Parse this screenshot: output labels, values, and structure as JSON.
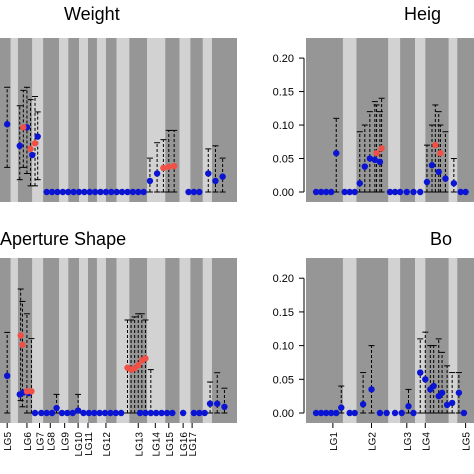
{
  "chart_data": [
    {
      "id": "weight",
      "type": "scatter",
      "title": "Weight",
      "categories": [
        "LG5",
        "LG6",
        "LG7",
        "LG8",
        "LG9",
        "LG10",
        "LG11",
        "LG12",
        "LG13",
        "LG14",
        "LG15",
        "LG16",
        "LG17"
      ],
      "show_x_labels": false,
      "show_y_ticks": false,
      "ylim": [
        0,
        0.25
      ],
      "points_blue": [
        {
          "x": 0.2,
          "y": 0.11
        },
        {
          "x": 0.9,
          "y": 0.075
        },
        {
          "x": 1.3,
          "y": 0.105
        },
        {
          "x": 1.6,
          "y": 0.06
        },
        {
          "x": 1.9,
          "y": 0.09
        },
        {
          "x": 2.4,
          "y": 0.0
        },
        {
          "x": 2.7,
          "y": 0.0
        },
        {
          "x": 3.0,
          "y": 0.0
        },
        {
          "x": 3.3,
          "y": 0.0
        },
        {
          "x": 3.6,
          "y": 0.0
        },
        {
          "x": 3.9,
          "y": 0.0
        },
        {
          "x": 4.2,
          "y": 0.0
        },
        {
          "x": 4.5,
          "y": 0.0
        },
        {
          "x": 4.8,
          "y": 0.0
        },
        {
          "x": 5.1,
          "y": 0.0
        },
        {
          "x": 5.4,
          "y": 0.0
        },
        {
          "x": 5.7,
          "y": 0.0
        },
        {
          "x": 6.0,
          "y": 0.0
        },
        {
          "x": 6.3,
          "y": 0.0
        },
        {
          "x": 6.6,
          "y": 0.0
        },
        {
          "x": 6.9,
          "y": 0.0
        },
        {
          "x": 7.2,
          "y": 0.0
        },
        {
          "x": 7.5,
          "y": 0.0
        },
        {
          "x": 7.8,
          "y": 0.0
        },
        {
          "x": 8.15,
          "y": 0.018
        },
        {
          "x": 8.55,
          "y": 0.03
        },
        {
          "x": 10.3,
          "y": 0.0
        },
        {
          "x": 10.6,
          "y": 0.0
        },
        {
          "x": 10.9,
          "y": 0.0
        },
        {
          "x": 11.4,
          "y": 0.03
        },
        {
          "x": 11.8,
          "y": 0.018
        },
        {
          "x": 12.2,
          "y": 0.025
        }
      ],
      "points_red": [
        {
          "x": 1.1,
          "y": 0.105
        },
        {
          "x": 1.5,
          "y": 0.07
        },
        {
          "x": 1.75,
          "y": 0.079
        },
        {
          "x": 8.9,
          "y": 0.039
        },
        {
          "x": 9.2,
          "y": 0.041
        },
        {
          "x": 9.5,
          "y": 0.042
        }
      ],
      "intervals": [
        {
          "x": 0.2,
          "lo": 0.04,
          "hi": 0.17
        },
        {
          "x": 0.9,
          "lo": 0.02,
          "hi": 0.14
        },
        {
          "x": 1.1,
          "lo": 0.04,
          "hi": 0.165
        },
        {
          "x": 1.3,
          "lo": 0.03,
          "hi": 0.17
        },
        {
          "x": 1.5,
          "lo": 0.01,
          "hi": 0.15
        },
        {
          "x": 1.75,
          "lo": 0.01,
          "hi": 0.155
        },
        {
          "x": 1.9,
          "lo": 0.02,
          "hi": 0.13
        },
        {
          "x": 8.15,
          "lo": 0.0,
          "hi": 0.055
        },
        {
          "x": 8.55,
          "lo": 0.0,
          "hi": 0.08
        },
        {
          "x": 8.9,
          "lo": 0.0,
          "hi": 0.085
        },
        {
          "x": 9.2,
          "lo": 0.0,
          "hi": 0.1
        },
        {
          "x": 9.5,
          "lo": 0.0,
          "hi": 0.1
        },
        {
          "x": 11.4,
          "lo": 0.0,
          "hi": 0.07
        },
        {
          "x": 11.8,
          "lo": 0.0,
          "hi": 0.075
        },
        {
          "x": 12.2,
          "lo": 0.0,
          "hi": 0.055
        }
      ]
    },
    {
      "id": "height",
      "type": "scatter",
      "title": "Heig",
      "categories": [
        "LG1",
        "LG2",
        "LG3",
        "LG4",
        "LG5"
      ],
      "show_x_labels": false,
      "show_y_ticks": true,
      "ylim": [
        0,
        0.23
      ],
      "yticks": [
        "0.00",
        "0.05",
        "0.10",
        "0.15",
        "0.20"
      ],
      "ytick_values": [
        0,
        0.05,
        0.1,
        0.15,
        0.2
      ],
      "points_blue": [
        {
          "x": 0.1,
          "y": 0.0
        },
        {
          "x": 0.25,
          "y": 0.0
        },
        {
          "x": 0.4,
          "y": 0.0
        },
        {
          "x": 0.55,
          "y": 0.0
        },
        {
          "x": 0.7,
          "y": 0.058
        },
        {
          "x": 0.95,
          "y": 0.0
        },
        {
          "x": 1.1,
          "y": 0.0
        },
        {
          "x": 1.25,
          "y": 0.0
        },
        {
          "x": 1.4,
          "y": 0.013
        },
        {
          "x": 1.55,
          "y": 0.038
        },
        {
          "x": 1.7,
          "y": 0.05
        },
        {
          "x": 1.85,
          "y": 0.048
        },
        {
          "x": 2.0,
          "y": 0.045
        },
        {
          "x": 2.3,
          "y": 0.0
        },
        {
          "x": 2.45,
          "y": 0.0
        },
        {
          "x": 2.6,
          "y": 0.0
        },
        {
          "x": 2.8,
          "y": 0.0
        },
        {
          "x": 3.0,
          "y": 0.0
        },
        {
          "x": 3.2,
          "y": 0.0
        },
        {
          "x": 3.4,
          "y": 0.015
        },
        {
          "x": 3.55,
          "y": 0.04
        },
        {
          "x": 3.75,
          "y": 0.03
        },
        {
          "x": 3.95,
          "y": 0.02
        },
        {
          "x": 4.2,
          "y": 0.013
        },
        {
          "x": 4.4,
          "y": 0.0
        },
        {
          "x": 4.55,
          "y": 0.0
        }
      ],
      "points_red": [
        {
          "x": 1.9,
          "y": 0.058
        },
        {
          "x": 2.05,
          "y": 0.065
        },
        {
          "x": 3.65,
          "y": 0.07
        },
        {
          "x": 3.8,
          "y": 0.058
        }
      ],
      "intervals": [
        {
          "x": 0.7,
          "lo": 0.0,
          "hi": 0.11
        },
        {
          "x": 1.4,
          "lo": 0.0,
          "hi": 0.09
        },
        {
          "x": 1.55,
          "lo": 0.0,
          "hi": 0.1
        },
        {
          "x": 1.7,
          "lo": 0.0,
          "hi": 0.12
        },
        {
          "x": 1.85,
          "lo": 0.0,
          "hi": 0.135
        },
        {
          "x": 1.9,
          "lo": 0.0,
          "hi": 0.13
        },
        {
          "x": 2.0,
          "lo": 0.0,
          "hi": 0.12
        },
        {
          "x": 2.05,
          "lo": 0.0,
          "hi": 0.14
        },
        {
          "x": 3.4,
          "lo": 0.0,
          "hi": 0.07
        },
        {
          "x": 3.55,
          "lo": 0.0,
          "hi": 0.1
        },
        {
          "x": 3.65,
          "lo": 0.0,
          "hi": 0.13
        },
        {
          "x": 3.75,
          "lo": 0.0,
          "hi": 0.12
        },
        {
          "x": 3.8,
          "lo": 0.0,
          "hi": 0.1
        },
        {
          "x": 3.95,
          "lo": 0.0,
          "hi": 0.09
        },
        {
          "x": 4.2,
          "lo": 0.0,
          "hi": 0.05
        }
      ]
    },
    {
      "id": "aperture",
      "type": "scatter",
      "title": "Aperture Shape",
      "categories": [
        "LG5",
        "LG6",
        "LG7",
        "LG8",
        "LG9",
        "LG10",
        "LG11",
        "LG12",
        "LG13",
        "LG14",
        "LG15",
        "LG16",
        "LG17"
      ],
      "show_x_labels": true,
      "show_y_ticks": false,
      "ylim": [
        0,
        0.25
      ],
      "points_blue": [
        {
          "x": 0.2,
          "y": 0.06
        },
        {
          "x": 0.9,
          "y": 0.03
        },
        {
          "x": 1.1,
          "y": 0.033
        },
        {
          "x": 1.4,
          "y": 0.032
        },
        {
          "x": 1.75,
          "y": 0.0
        },
        {
          "x": 2.1,
          "y": 0.0
        },
        {
          "x": 2.4,
          "y": 0.0
        },
        {
          "x": 2.7,
          "y": 0.0
        },
        {
          "x": 2.95,
          "y": 0.008
        },
        {
          "x": 3.25,
          "y": 0.0
        },
        {
          "x": 3.55,
          "y": 0.0
        },
        {
          "x": 3.85,
          "y": 0.0
        },
        {
          "x": 4.15,
          "y": 0.004
        },
        {
          "x": 4.45,
          "y": 0.0
        },
        {
          "x": 4.75,
          "y": 0.0
        },
        {
          "x": 5.05,
          "y": 0.0
        },
        {
          "x": 5.35,
          "y": 0.0
        },
        {
          "x": 5.65,
          "y": 0.0
        },
        {
          "x": 5.95,
          "y": 0.0
        },
        {
          "x": 6.25,
          "y": 0.0
        },
        {
          "x": 6.55,
          "y": 0.0
        },
        {
          "x": 7.6,
          "y": 0.0
        },
        {
          "x": 7.9,
          "y": 0.0
        },
        {
          "x": 8.2,
          "y": 0.0
        },
        {
          "x": 8.5,
          "y": 0.0
        },
        {
          "x": 8.8,
          "y": 0.0
        },
        {
          "x": 9.1,
          "y": 0.0
        },
        {
          "x": 9.4,
          "y": 0.0
        },
        {
          "x": 10.0,
          "y": 0.0
        },
        {
          "x": 10.6,
          "y": 0.0
        },
        {
          "x": 10.9,
          "y": 0.0
        },
        {
          "x": 11.2,
          "y": 0.0
        },
        {
          "x": 11.5,
          "y": 0.015
        },
        {
          "x": 11.9,
          "y": 0.015
        },
        {
          "x": 12.3,
          "y": 0.01
        }
      ],
      "points_red": [
        {
          "x": 0.95,
          "y": 0.125
        },
        {
          "x": 1.05,
          "y": 0.11
        },
        {
          "x": 1.3,
          "y": 0.035
        },
        {
          "x": 1.55,
          "y": 0.035
        },
        {
          "x": 6.9,
          "y": 0.073
        },
        {
          "x": 7.1,
          "y": 0.07
        },
        {
          "x": 7.3,
          "y": 0.072
        },
        {
          "x": 7.5,
          "y": 0.077
        },
        {
          "x": 7.7,
          "y": 0.085
        },
        {
          "x": 7.9,
          "y": 0.088
        }
      ],
      "intervals": [
        {
          "x": 0.2,
          "lo": 0.0,
          "hi": 0.13
        },
        {
          "x": 0.95,
          "lo": 0.02,
          "hi": 0.2
        },
        {
          "x": 1.05,
          "lo": 0.01,
          "hi": 0.18
        },
        {
          "x": 1.3,
          "lo": 0.0,
          "hi": 0.16
        },
        {
          "x": 1.55,
          "lo": 0.0,
          "hi": 0.12
        },
        {
          "x": 2.95,
          "lo": 0.0,
          "hi": 0.03
        },
        {
          "x": 4.15,
          "lo": 0.0,
          "hi": 0.03
        },
        {
          "x": 6.9,
          "lo": 0.0,
          "hi": 0.15
        },
        {
          "x": 7.1,
          "lo": 0.0,
          "hi": 0.15
        },
        {
          "x": 7.3,
          "lo": 0.0,
          "hi": 0.155
        },
        {
          "x": 7.5,
          "lo": 0.0,
          "hi": 0.16
        },
        {
          "x": 7.7,
          "lo": 0.0,
          "hi": 0.16
        },
        {
          "x": 7.9,
          "lo": 0.0,
          "hi": 0.15
        },
        {
          "x": 8.2,
          "lo": 0.0,
          "hi": 0.07
        },
        {
          "x": 11.5,
          "lo": 0.0,
          "hi": 0.05
        },
        {
          "x": 11.9,
          "lo": 0.0,
          "hi": 0.065
        },
        {
          "x": 12.3,
          "lo": 0.0,
          "hi": 0.04
        }
      ]
    },
    {
      "id": "bo",
      "type": "scatter",
      "title": "Bo",
      "categories": [
        "LG1",
        "LG2",
        "LG3",
        "LG4",
        "LG5"
      ],
      "show_x_labels": true,
      "show_y_ticks": true,
      "ylim": [
        0,
        0.23
      ],
      "yticks": [
        "0.00",
        "0.05",
        "0.10",
        "0.15",
        "0.20"
      ],
      "ytick_values": [
        0,
        0.05,
        0.1,
        0.15,
        0.2
      ],
      "points_blue": [
        {
          "x": 0.1,
          "y": 0.0
        },
        {
          "x": 0.25,
          "y": 0.0
        },
        {
          "x": 0.4,
          "y": 0.0
        },
        {
          "x": 0.55,
          "y": 0.0
        },
        {
          "x": 0.7,
          "y": 0.0
        },
        {
          "x": 0.85,
          "y": 0.008
        },
        {
          "x": 1.1,
          "y": 0.0
        },
        {
          "x": 1.25,
          "y": 0.0
        },
        {
          "x": 1.5,
          "y": 0.013
        },
        {
          "x": 1.75,
          "y": 0.035
        },
        {
          "x": 2.0,
          "y": 0.0
        },
        {
          "x": 2.2,
          "y": 0.0
        },
        {
          "x": 2.45,
          "y": 0.0
        },
        {
          "x": 2.65,
          "y": 0.0
        },
        {
          "x": 2.85,
          "y": 0.01
        },
        {
          "x": 3.0,
          "y": 0.0
        },
        {
          "x": 3.2,
          "y": 0.06
        },
        {
          "x": 3.35,
          "y": 0.05
        },
        {
          "x": 3.5,
          "y": 0.035
        },
        {
          "x": 3.6,
          "y": 0.04
        },
        {
          "x": 3.75,
          "y": 0.025
        },
        {
          "x": 3.85,
          "y": 0.03
        },
        {
          "x": 4.0,
          "y": 0.012
        },
        {
          "x": 4.15,
          "y": 0.015
        },
        {
          "x": 4.35,
          "y": 0.03
        },
        {
          "x": 4.5,
          "y": 0.0
        }
      ],
      "points_red": [],
      "intervals": [
        {
          "x": 0.85,
          "lo": 0.0,
          "hi": 0.04
        },
        {
          "x": 1.5,
          "lo": 0.0,
          "hi": 0.06
        },
        {
          "x": 1.75,
          "lo": 0.0,
          "hi": 0.1
        },
        {
          "x": 2.85,
          "lo": 0.0,
          "hi": 0.035
        },
        {
          "x": 3.2,
          "lo": 0.0,
          "hi": 0.11
        },
        {
          "x": 3.35,
          "lo": 0.0,
          "hi": 0.12
        },
        {
          "x": 3.5,
          "lo": 0.0,
          "hi": 0.1
        },
        {
          "x": 3.6,
          "lo": 0.0,
          "hi": 0.1
        },
        {
          "x": 3.75,
          "lo": 0.0,
          "hi": 0.11
        },
        {
          "x": 3.85,
          "lo": 0.0,
          "hi": 0.09
        },
        {
          "x": 4.0,
          "lo": 0.0,
          "hi": 0.07
        },
        {
          "x": 4.15,
          "lo": 0.0,
          "hi": 0.06
        },
        {
          "x": 4.35,
          "lo": 0.0,
          "hi": 0.06
        }
      ]
    }
  ],
  "colors": {
    "band_dark": "#969696",
    "band_light": "#d2d2d2",
    "point_blue": "#0a14d2",
    "point_red": "#f05046",
    "interval": "#000000"
  }
}
